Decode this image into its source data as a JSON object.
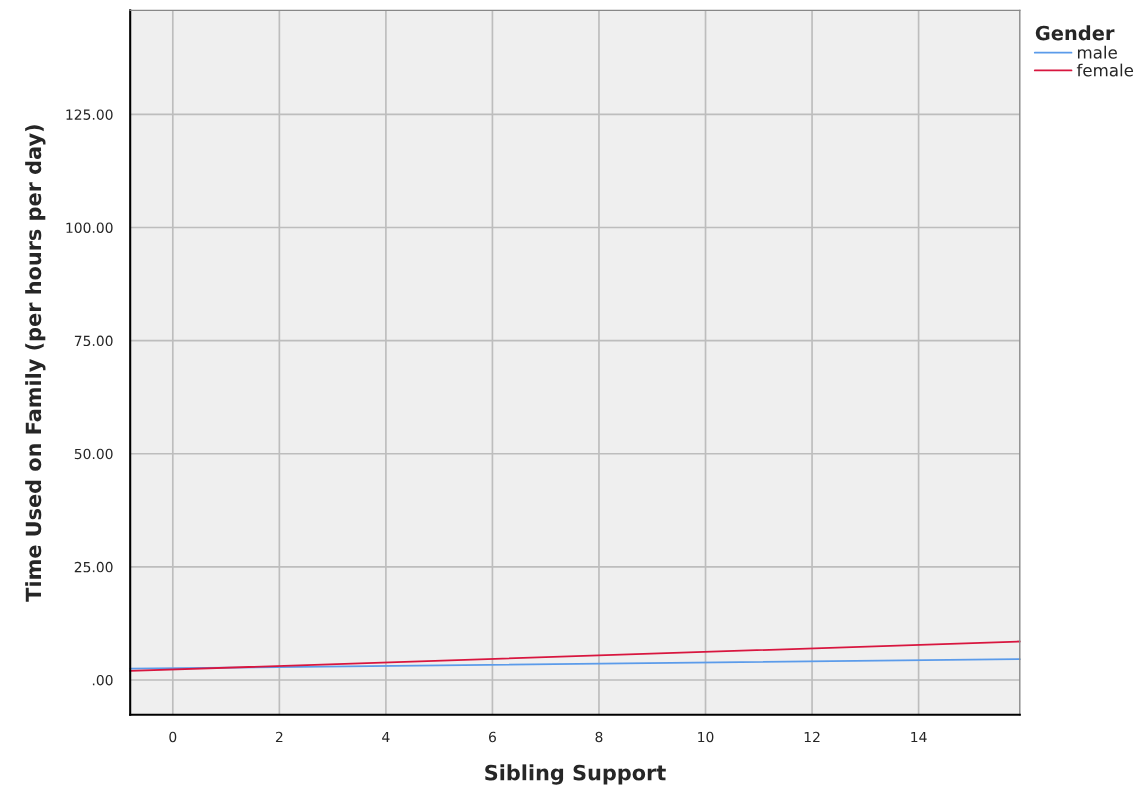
{
  "chart_data": {
    "type": "line",
    "xlabel": "Sibling Support",
    "ylabel": "Time Used on Family (per hours per day)",
    "legend_title": "Gender",
    "xlim": [
      -0.8,
      15.9
    ],
    "ylim": [
      -7.7,
      148
    ],
    "xticks": [
      0,
      2,
      4,
      6,
      8,
      10,
      12,
      14
    ],
    "yticks": [
      {
        "value": 0,
        "label": ".00"
      },
      {
        "value": 25,
        "label": "25.00"
      },
      {
        "value": 50,
        "label": "50.00"
      },
      {
        "value": 75,
        "label": "75.00"
      },
      {
        "value": 100,
        "label": "100.00"
      },
      {
        "value": 125,
        "label": "125.00"
      }
    ],
    "grid": true,
    "legend": "top right",
    "x": [
      -0.8,
      15.9
    ],
    "series": [
      {
        "name": "male",
        "color": "#5b9bea",
        "values": [
          2.5,
          4.6
        ]
      },
      {
        "name": "female",
        "color": "#d8163f",
        "values": [
          2.0,
          8.5
        ]
      }
    ]
  }
}
